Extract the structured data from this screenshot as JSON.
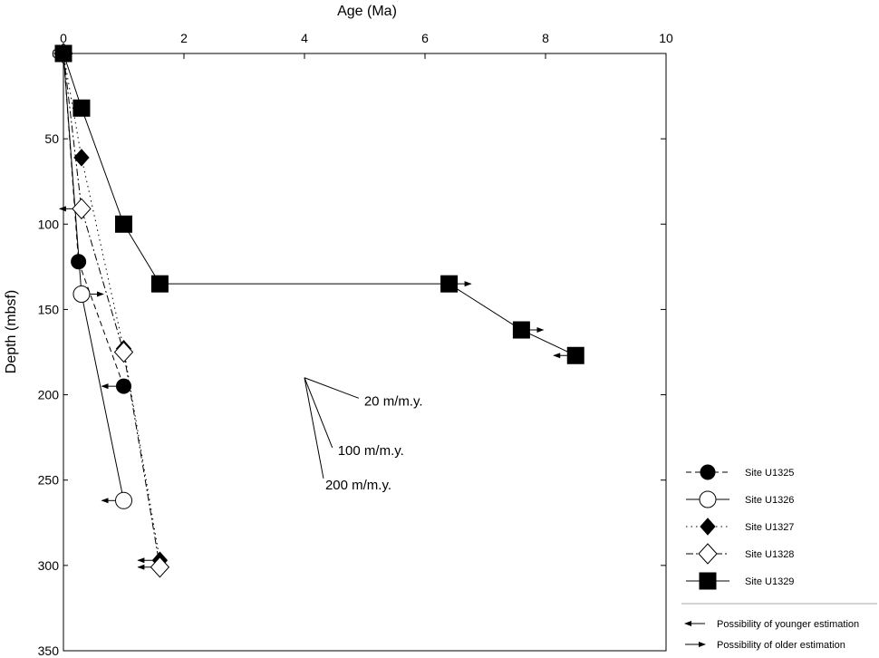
{
  "chart_data": {
    "type": "scatter",
    "title": "",
    "xlabel": "Age (Ma)",
    "ylabel": "Depth (mbsf)",
    "xlim": [
      0,
      10
    ],
    "ylim": [
      0,
      350
    ],
    "y_inverted": true,
    "x_axis_position": "top",
    "x_ticks": [
      "0",
      "2",
      "4",
      "6",
      "8",
      "10"
    ],
    "y_ticks": [
      "0",
      "50",
      "100",
      "150",
      "200",
      "250",
      "300",
      "350"
    ],
    "legend_position": "right",
    "series": [
      {
        "name": "Site U1325",
        "marker": "filled-circle",
        "line_style": "dashed",
        "points": [
          {
            "x": 0.0,
            "y": 0,
            "arrow": null
          },
          {
            "x": 0.25,
            "y": 122,
            "arrow": null
          },
          {
            "x": 1.0,
            "y": 195,
            "arrow": "younger"
          }
        ]
      },
      {
        "name": "Site U1326",
        "marker": "open-circle",
        "line_style": "solid",
        "points": [
          {
            "x": 0.0,
            "y": 0,
            "arrow": null
          },
          {
            "x": 0.3,
            "y": 141,
            "arrow": "older"
          },
          {
            "x": 1.0,
            "y": 262,
            "arrow": "younger"
          }
        ]
      },
      {
        "name": "Site U1327",
        "marker": "filled-diamond",
        "line_style": "dotted",
        "points": [
          {
            "x": 0.0,
            "y": 0,
            "arrow": null
          },
          {
            "x": 0.3,
            "y": 61,
            "arrow": null
          },
          {
            "x": 1.0,
            "y": 173,
            "arrow": null
          },
          {
            "x": 1.6,
            "y": 297,
            "arrow": "younger"
          }
        ]
      },
      {
        "name": "Site U1328",
        "marker": "open-diamond",
        "line_style": "dash-dot",
        "points": [
          {
            "x": 0.0,
            "y": 0,
            "arrow": null
          },
          {
            "x": 0.3,
            "y": 91,
            "arrow": "younger"
          },
          {
            "x": 1.0,
            "y": 175,
            "arrow": null
          },
          {
            "x": 1.6,
            "y": 301,
            "arrow": "younger"
          }
        ]
      },
      {
        "name": "Site U1329",
        "marker": "filled-square",
        "line_style": "solid",
        "points": [
          {
            "x": 0.0,
            "y": 0,
            "arrow": null
          },
          {
            "x": 0.3,
            "y": 32,
            "arrow": null
          },
          {
            "x": 1.0,
            "y": 100,
            "arrow": null
          },
          {
            "x": 1.6,
            "y": 135,
            "arrow": null
          },
          {
            "x": 6.4,
            "y": 135,
            "arrow": "older"
          },
          {
            "x": 7.6,
            "y": 162,
            "arrow": "older"
          },
          {
            "x": 8.5,
            "y": 177,
            "arrow": "younger"
          }
        ]
      }
    ],
    "rate_lines": {
      "origin": {
        "x": 4.0,
        "y": 190
      },
      "lines": [
        {
          "label": "20 m/m.y.",
          "rate": 20
        },
        {
          "label": "100 m/m.y.",
          "rate": 100
        },
        {
          "label": "200 m/m.y.",
          "rate": 200
        }
      ]
    },
    "arrow_legend": {
      "younger": "Possibility of younger estimation",
      "older": "Possibility of older estimation"
    }
  }
}
